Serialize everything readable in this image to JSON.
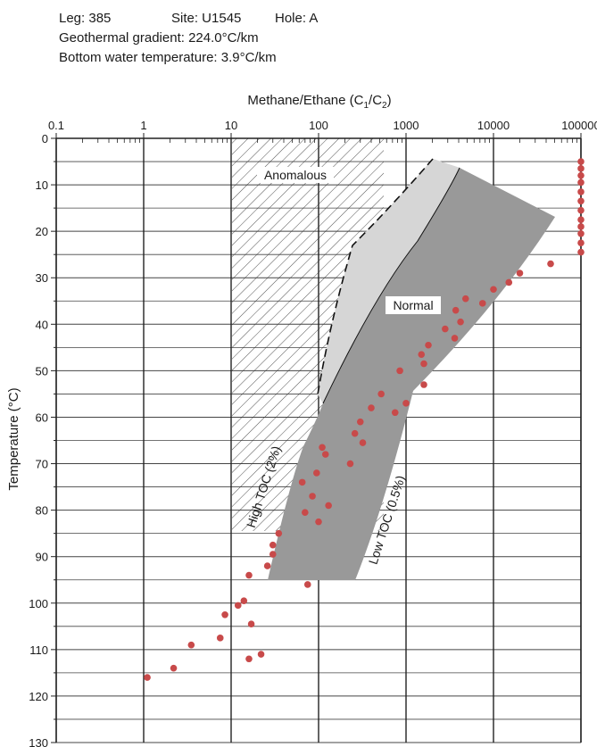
{
  "header": {
    "leg": "Leg: 385",
    "site": "Site: U1545",
    "hole": "Hole: A",
    "gradient": "Geothermal gradient: 224.0°C/km",
    "bottom_water": "Bottom water temperature: 3.9°C/km"
  },
  "chart_data": {
    "type": "scatter",
    "title": "",
    "xlabel_main": "Methane/Ethane (C",
    "xlabel_sub1": "1",
    "xlabel_mid": "/C",
    "xlabel_sub2": "2",
    "xlabel_end": ")",
    "ylabel": "Temperature (°C)",
    "xscale": "log",
    "xlim": [
      0.1,
      100000
    ],
    "ylim": [
      130,
      0
    ],
    "x_tick_labels": [
      "0.1",
      "1",
      "10",
      "100",
      "1000",
      "10000",
      "100000"
    ],
    "y_tick_labels": [
      "0",
      "10",
      "20",
      "30",
      "40",
      "50",
      "60",
      "70",
      "80",
      "90",
      "100",
      "110",
      "120",
      "130"
    ],
    "grid": true,
    "point_color": "#c84a4a",
    "annotations": {
      "anomalous": "Anomalous",
      "normal": "Normal",
      "high_toc": "High TOC (2%)",
      "low_toc": "Low TOC (0.5%)"
    },
    "series": [
      {
        "points": [
          [
            100000,
            5
          ],
          [
            100000,
            6.5
          ],
          [
            100000,
            8
          ],
          [
            100000,
            9.5
          ],
          [
            100000,
            11.5
          ],
          [
            100000,
            13.5
          ],
          [
            100000,
            15.5
          ],
          [
            100000,
            17.5
          ],
          [
            100000,
            19
          ],
          [
            100000,
            20.5
          ],
          [
            100000,
            22.5
          ],
          [
            100000,
            24.5
          ],
          [
            45000,
            27
          ],
          [
            20000,
            29
          ],
          [
            15000,
            31
          ],
          [
            10000,
            32.5
          ],
          [
            7500,
            35.5
          ],
          [
            4800,
            34.5
          ],
          [
            3700,
            37
          ],
          [
            4200,
            39.5
          ],
          [
            2800,
            41
          ],
          [
            3600,
            43
          ],
          [
            1800,
            44.5
          ],
          [
            1500,
            46.5
          ],
          [
            1600,
            48.5
          ],
          [
            850,
            50
          ],
          [
            1600,
            53
          ],
          [
            520,
            55
          ],
          [
            1000,
            57
          ],
          [
            400,
            58
          ],
          [
            750,
            59
          ],
          [
            300,
            61
          ],
          [
            260,
            63.5
          ],
          [
            320,
            65.5
          ],
          [
            110,
            66.5
          ],
          [
            120,
            68
          ],
          [
            230,
            70
          ],
          [
            95,
            72
          ],
          [
            65,
            74
          ],
          [
            85,
            77
          ],
          [
            130,
            79
          ],
          [
            70,
            80.5
          ],
          [
            100,
            82.5
          ],
          [
            35,
            85
          ],
          [
            30,
            87.5
          ],
          [
            30,
            89.5
          ],
          [
            26,
            92
          ],
          [
            16,
            94
          ],
          [
            75,
            96
          ],
          [
            14,
            99.5
          ],
          [
            12,
            100.5
          ],
          [
            8.5,
            102.5
          ],
          [
            17,
            104.5
          ],
          [
            7.5,
            107.5
          ],
          [
            3.5,
            109
          ],
          [
            22,
            111
          ],
          [
            16,
            112
          ],
          [
            2.2,
            114
          ],
          [
            1.1,
            116
          ]
        ]
      }
    ]
  }
}
